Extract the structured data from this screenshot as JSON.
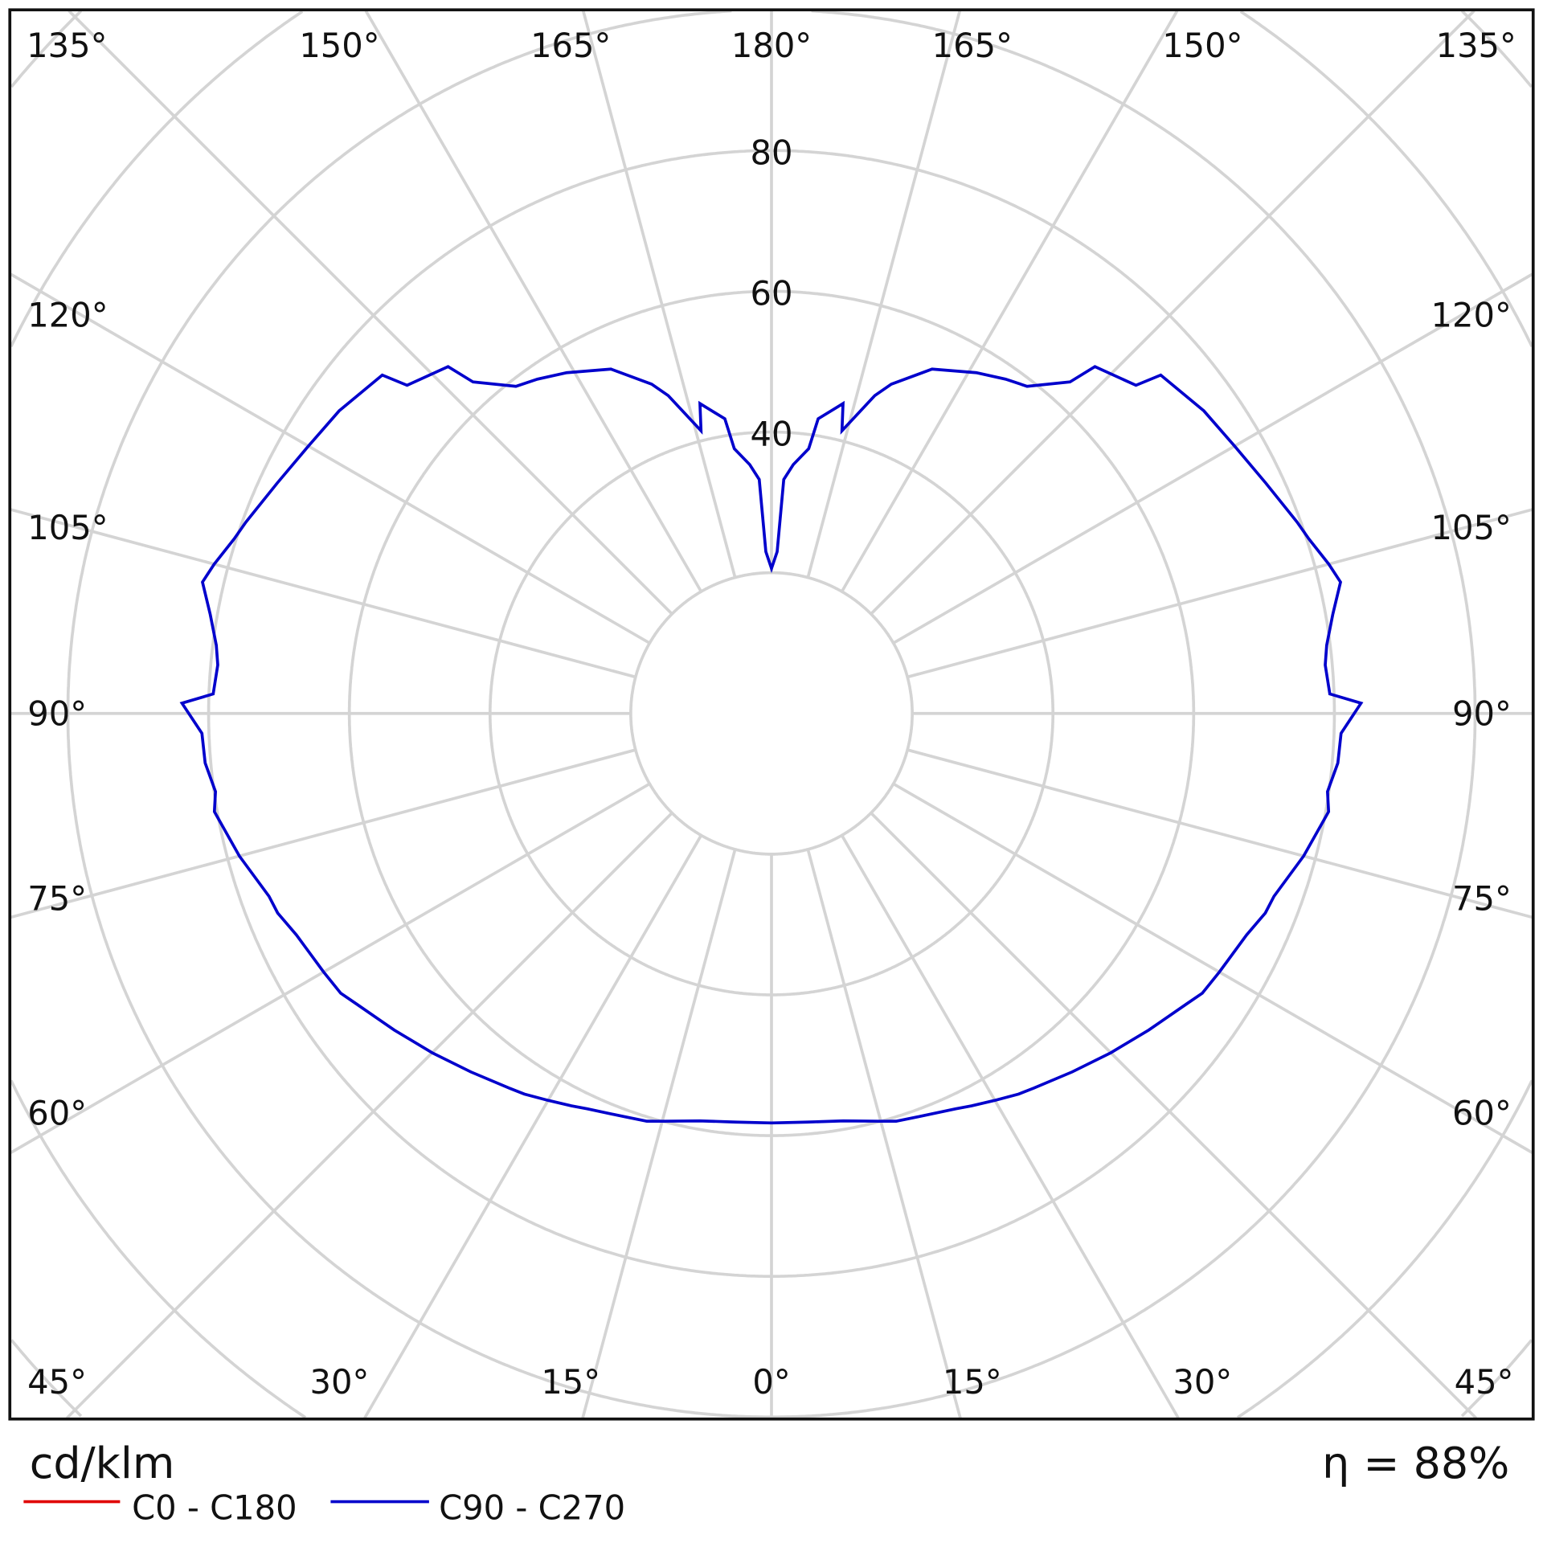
{
  "chart_data": {
    "type": "polar-line",
    "unit_label": "cd/klm",
    "efficiency_label": "η = 88%",
    "radial_ticks": [
      "40",
      "60",
      "80"
    ],
    "radial_range": [
      0,
      120
    ],
    "grid": true,
    "angle_ticks_top": [
      "135°",
      "150°",
      "165°",
      "180°",
      "165°",
      "150°",
      "135°"
    ],
    "angle_ticks_side": [
      "120°",
      "105°",
      "90°",
      "75°",
      "60°"
    ],
    "angle_ticks_bottom": [
      "45°",
      "30°",
      "15°",
      "0°",
      "15°",
      "30°",
      "45°"
    ],
    "legend_position": "bottom-left",
    "series": [
      {
        "name": "C0 - C180",
        "color": "#e00000",
        "points": []
      },
      {
        "name": "C90 - C270",
        "color": "#0000cc",
        "symmetric": true,
        "points": [
          [
            0,
            58.2
          ],
          [
            5,
            58.3
          ],
          [
            10,
            58.8
          ],
          [
            15,
            60
          ],
          [
            17,
            60.6
          ],
          [
            20,
            61
          ],
          [
            25,
            62
          ],
          [
            27,
            62.6
          ],
          [
            30,
            63.5
          ],
          [
            33,
            64.5
          ],
          [
            35,
            65
          ],
          [
            40,
            66.5
          ],
          [
            45,
            68.2
          ],
          [
            50,
            70
          ],
          [
            55,
            72
          ],
          [
            57,
            73
          ],
          [
            60,
            73.5
          ],
          [
            65,
            74.5
          ],
          [
            68,
            75.7
          ],
          [
            70,
            76
          ],
          [
            75,
            78.3
          ],
          [
            80,
            80.4
          ],
          [
            82,
            79.8
          ],
          [
            85,
            80.8
          ],
          [
            88,
            81
          ],
          [
            91,
            83.8
          ],
          [
            92,
            79.4
          ],
          [
            95,
            79
          ],
          [
            97,
            79.5
          ],
          [
            100,
            81
          ],
          [
            103,
            83
          ],
          [
            105,
            82
          ],
          [
            108,
            80.3
          ],
          [
            110,
            79.5
          ],
          [
            115,
            77.5
          ],
          [
            120,
            76
          ],
          [
            125,
            75
          ],
          [
            131,
            73.3
          ],
          [
            132,
            69.7
          ],
          [
            137,
            67.4
          ],
          [
            138,
            63.4
          ],
          [
            142,
            59
          ],
          [
            145,
            58
          ],
          [
            149,
            56.5
          ],
          [
            155,
            54
          ],
          [
            160,
            49.8
          ],
          [
            162,
            47.5
          ],
          [
            166,
            41.4
          ],
          [
            167,
            45.2
          ],
          [
            171,
            42.4
          ],
          [
            172,
            38
          ],
          [
            175,
            35.5
          ],
          [
            177,
            33.3
          ],
          [
            178,
            23
          ],
          [
            180,
            20.6
          ]
        ]
      }
    ]
  }
}
